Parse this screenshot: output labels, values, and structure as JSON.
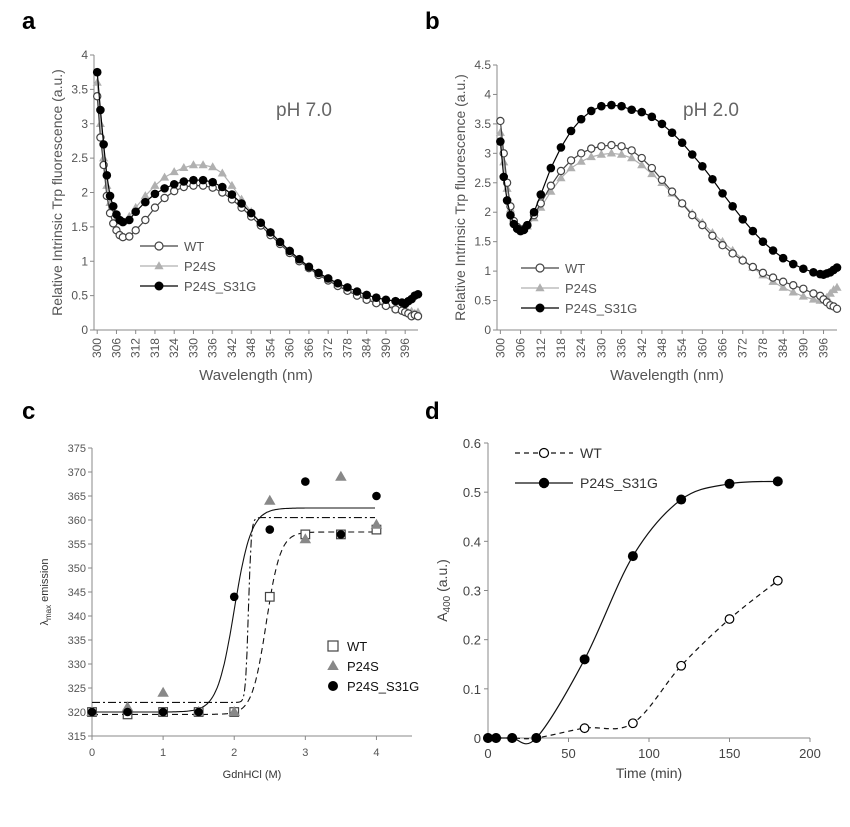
{
  "chart_data": [
    {
      "panel_label": "a",
      "type": "scatter",
      "annotation": "pH 7.0",
      "xlabel": "Wavelength (nm)",
      "ylabel": "Relative Intrinsic Trp fluorescence (a.u.)",
      "xlim": [
        299,
        400
      ],
      "ylim": [
        0,
        4
      ],
      "x_ticks": [
        300,
        306,
        312,
        318,
        324,
        330,
        336,
        342,
        348,
        354,
        360,
        366,
        372,
        378,
        384,
        390,
        396
      ],
      "y_ticks": [
        0,
        0.5,
        1,
        1.5,
        2,
        2.5,
        3,
        3.5,
        4
      ],
      "legend_position": "lower-left",
      "colors": {
        "WT": "#444444",
        "P24S": "#b0b0b0",
        "P24S_S31G": "#000000"
      },
      "series": [
        {
          "name": "WT",
          "marker": "open-circle",
          "x": [
            300,
            301,
            302,
            303,
            304,
            305,
            306,
            307,
            308,
            310,
            312,
            315,
            318,
            321,
            324,
            327,
            330,
            333,
            336,
            339,
            342,
            345,
            348,
            351,
            354,
            357,
            360,
            363,
            366,
            369,
            372,
            375,
            378,
            381,
            384,
            387,
            390,
            393,
            395,
            396,
            397,
            398,
            399,
            400
          ],
          "y": [
            3.4,
            2.8,
            2.4,
            1.95,
            1.7,
            1.55,
            1.45,
            1.38,
            1.35,
            1.36,
            1.45,
            1.6,
            1.78,
            1.92,
            2.02,
            2.08,
            2.1,
            2.1,
            2.07,
            2.0,
            1.9,
            1.78,
            1.65,
            1.52,
            1.38,
            1.25,
            1.12,
            1.0,
            0.9,
            0.8,
            0.72,
            0.64,
            0.57,
            0.5,
            0.44,
            0.39,
            0.35,
            0.3,
            0.28,
            0.26,
            0.24,
            0.2,
            0.22,
            0.2
          ]
        },
        {
          "name": "P24S",
          "marker": "triangle",
          "x": [
            300,
            301,
            302,
            303,
            304,
            305,
            306,
            307,
            308,
            310,
            312,
            315,
            318,
            321,
            324,
            327,
            330,
            333,
            336,
            339,
            342,
            345,
            348,
            351,
            354,
            357,
            360,
            363,
            366,
            369,
            372,
            375,
            378,
            381,
            384,
            387,
            390,
            393,
            395,
            396,
            397,
            398,
            399,
            400
          ],
          "y": [
            3.6,
            3.0,
            2.5,
            2.1,
            1.85,
            1.7,
            1.62,
            1.58,
            1.58,
            1.65,
            1.78,
            1.95,
            2.1,
            2.22,
            2.3,
            2.36,
            2.4,
            2.4,
            2.37,
            2.28,
            2.1,
            1.9,
            1.72,
            1.56,
            1.42,
            1.28,
            1.15,
            1.02,
            0.91,
            0.82,
            0.74,
            0.66,
            0.59,
            0.52,
            0.46,
            0.41,
            0.37,
            0.32,
            0.3,
            0.27,
            0.25,
            0.27,
            0.24,
            0.26
          ]
        },
        {
          "name": "P24S_S31G",
          "marker": "filled-circle",
          "x": [
            300,
            301,
            302,
            303,
            304,
            305,
            306,
            307,
            308,
            310,
            312,
            315,
            318,
            321,
            324,
            327,
            330,
            333,
            336,
            339,
            342,
            345,
            348,
            351,
            354,
            357,
            360,
            363,
            366,
            369,
            372,
            375,
            378,
            381,
            384,
            387,
            390,
            393,
            395,
            396,
            397,
            398,
            399,
            400
          ],
          "y": [
            3.75,
            3.2,
            2.7,
            2.25,
            1.95,
            1.8,
            1.68,
            1.6,
            1.57,
            1.6,
            1.72,
            1.86,
            1.98,
            2.06,
            2.12,
            2.16,
            2.18,
            2.18,
            2.15,
            2.08,
            1.97,
            1.84,
            1.7,
            1.56,
            1.42,
            1.28,
            1.15,
            1.03,
            0.92,
            0.83,
            0.75,
            0.68,
            0.62,
            0.56,
            0.51,
            0.47,
            0.44,
            0.42,
            0.4,
            0.38,
            0.42,
            0.45,
            0.5,
            0.52
          ]
        }
      ]
    },
    {
      "panel_label": "b",
      "type": "scatter",
      "annotation": "pH 2.0",
      "xlabel": "Wavelength (nm)",
      "ylabel": "Relative Intrinsic Trp fluorescence (a.u.)",
      "xlim": [
        299,
        400
      ],
      "ylim": [
        0,
        4.5
      ],
      "x_ticks": [
        300,
        306,
        312,
        318,
        324,
        330,
        336,
        342,
        348,
        354,
        360,
        366,
        372,
        378,
        384,
        390,
        396
      ],
      "y_ticks": [
        0,
        0.5,
        1,
        1.5,
        2,
        2.5,
        3,
        3.5,
        4,
        4.5
      ],
      "legend_position": "lower-left",
      "colors": {
        "WT": "#444444",
        "P24S": "#b0b0b0",
        "P24S_S31G": "#000000"
      },
      "series": [
        {
          "name": "WT",
          "marker": "open-circle",
          "x": [
            300,
            301,
            302,
            303,
            304,
            305,
            306,
            307,
            308,
            310,
            312,
            315,
            318,
            321,
            324,
            327,
            330,
            333,
            336,
            339,
            342,
            345,
            348,
            351,
            354,
            357,
            360,
            363,
            366,
            369,
            372,
            375,
            378,
            381,
            384,
            387,
            390,
            393,
            395,
            396,
            397,
            398,
            399,
            400
          ],
          "y": [
            3.55,
            3.0,
            2.5,
            2.1,
            1.85,
            1.75,
            1.7,
            1.72,
            1.78,
            1.95,
            2.15,
            2.45,
            2.7,
            2.88,
            3.0,
            3.08,
            3.12,
            3.14,
            3.12,
            3.05,
            2.92,
            2.75,
            2.55,
            2.35,
            2.15,
            1.95,
            1.78,
            1.6,
            1.44,
            1.3,
            1.18,
            1.07,
            0.97,
            0.89,
            0.82,
            0.76,
            0.7,
            0.62,
            0.58,
            0.52,
            0.47,
            0.42,
            0.4,
            0.36
          ]
        },
        {
          "name": "P24S",
          "marker": "triangle",
          "x": [
            300,
            301,
            302,
            303,
            304,
            305,
            306,
            307,
            308,
            310,
            312,
            315,
            318,
            321,
            324,
            327,
            330,
            333,
            336,
            339,
            342,
            345,
            348,
            351,
            354,
            357,
            360,
            363,
            366,
            369,
            372,
            375,
            378,
            381,
            384,
            387,
            390,
            393,
            395,
            396,
            397,
            398,
            399,
            400
          ],
          "y": [
            3.35,
            2.85,
            2.4,
            2.05,
            1.85,
            1.75,
            1.7,
            1.72,
            1.76,
            1.9,
            2.08,
            2.35,
            2.58,
            2.75,
            2.86,
            2.94,
            2.98,
            3.0,
            2.98,
            2.92,
            2.8,
            2.65,
            2.5,
            2.32,
            2.15,
            1.98,
            1.82,
            1.65,
            1.5,
            1.35,
            1.2,
            1.06,
            0.93,
            0.82,
            0.72,
            0.64,
            0.57,
            0.52,
            0.5,
            0.5,
            0.55,
            0.62,
            0.68,
            0.72
          ]
        },
        {
          "name": "P24S_S31G",
          "marker": "filled-circle",
          "x": [
            300,
            301,
            302,
            303,
            304,
            305,
            306,
            307,
            308,
            310,
            312,
            315,
            318,
            321,
            324,
            327,
            330,
            333,
            336,
            339,
            342,
            345,
            348,
            351,
            354,
            357,
            360,
            363,
            366,
            369,
            372,
            375,
            378,
            381,
            384,
            387,
            390,
            393,
            395,
            396,
            397,
            398,
            399,
            400
          ],
          "y": [
            3.2,
            2.6,
            2.2,
            1.95,
            1.8,
            1.72,
            1.68,
            1.7,
            1.78,
            2.0,
            2.3,
            2.75,
            3.1,
            3.38,
            3.58,
            3.72,
            3.8,
            3.82,
            3.8,
            3.74,
            3.7,
            3.62,
            3.5,
            3.35,
            3.18,
            2.98,
            2.78,
            2.56,
            2.32,
            2.1,
            1.88,
            1.68,
            1.5,
            1.35,
            1.22,
            1.12,
            1.04,
            0.98,
            0.95,
            0.94,
            0.96,
            0.98,
            1.02,
            1.06
          ]
        }
      ]
    },
    {
      "panel_label": "c",
      "type": "scatter",
      "xlabel": "GdnHCl (M)",
      "ylabel_main": "λ",
      "ylabel_sub": "max",
      "ylabel_rest": " emission",
      "xlim": [
        0,
        4.5
      ],
      "ylim": [
        315,
        375
      ],
      "x_ticks": [
        0,
        1,
        2,
        3,
        4
      ],
      "y_ticks": [
        315,
        320,
        325,
        330,
        335,
        340,
        345,
        350,
        355,
        360,
        365,
        370,
        375
      ],
      "legend_position": "center-right",
      "colors": {
        "WT": "#444444",
        "P24S": "#888888",
        "P24S_S31G": "#000000"
      },
      "series": [
        {
          "name": "WT",
          "marker": "open-square",
          "x": [
            0,
            0.5,
            1,
            1.5,
            2,
            2.5,
            3,
            3.5,
            4
          ],
          "y": [
            320,
            319.5,
            320,
            320,
            320,
            344,
            357,
            357,
            358
          ],
          "fit": {
            "style": "dashed",
            "low": 319.5,
            "high": 357.5,
            "midpoint": 2.45,
            "slope": 0.1
          }
        },
        {
          "name": "P24S",
          "marker": "triangle",
          "x": [
            0,
            0.5,
            1,
            1.5,
            2,
            2.5,
            3,
            3.5,
            4
          ],
          "y": [
            320,
            321,
            324,
            320,
            320,
            364,
            356,
            369,
            359
          ],
          "fit": {
            "style": "dash-dot",
            "low": 322,
            "high": 360.5,
            "midpoint": 2.2,
            "slope": 0.02
          }
        },
        {
          "name": "P24S_S31G",
          "marker": "filled-circle",
          "x": [
            0,
            0.5,
            1,
            1.5,
            2,
            2.5,
            3,
            3.5,
            4
          ],
          "y": [
            320,
            320,
            320,
            320,
            344,
            358,
            368,
            357,
            365
          ],
          "fit": {
            "style": "solid",
            "low": 320,
            "high": 362.5,
            "midpoint": 2.0,
            "slope": 0.12
          }
        }
      ]
    },
    {
      "panel_label": "d",
      "type": "line",
      "xlabel": "Time (min)",
      "ylabel_main": "A",
      "ylabel_sub": "400",
      "ylabel_rest": " (a.u.)",
      "xlim": [
        0,
        200
      ],
      "ylim": [
        0,
        0.6
      ],
      "x_ticks": [
        0,
        50,
        100,
        150,
        200
      ],
      "y_ticks": [
        0,
        0.1,
        0.2,
        0.3,
        0.4,
        0.5,
        0.6
      ],
      "legend_position": "top-left",
      "colors": {
        "WT": "#000000",
        "P24S_S31G": "#000000"
      },
      "series": [
        {
          "name": "WT",
          "marker": "open-circle",
          "line": "dashed",
          "x": [
            0,
            5,
            15,
            30,
            60,
            90,
            120,
            150,
            180
          ],
          "y": [
            0,
            0,
            0,
            0,
            0.02,
            0.03,
            0.147,
            0.242,
            0.32
          ]
        },
        {
          "name": "P24S_S31G",
          "marker": "filled-circle",
          "line": "solid",
          "x": [
            0,
            5,
            15,
            30,
            60,
            90,
            120,
            150,
            180
          ],
          "y": [
            0,
            0,
            0,
            0,
            0.16,
            0.37,
            0.485,
            0.517,
            0.522
          ]
        }
      ]
    }
  ]
}
